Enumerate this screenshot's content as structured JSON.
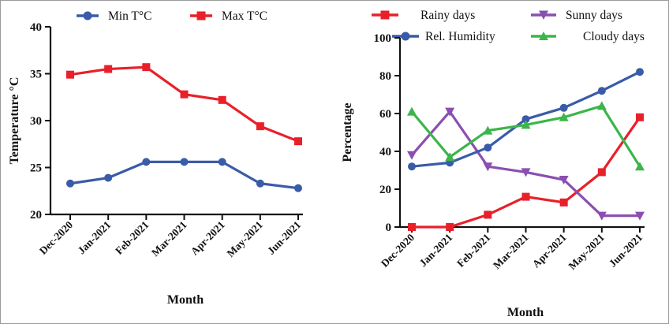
{
  "chart_data": [
    {
      "type": "line",
      "categories": [
        "Dec-2020",
        "Jan-2021",
        "Feb-2021",
        "Mar-2021",
        "Apr-2021",
        "May-2021",
        "Jun-2021"
      ],
      "xlabel": "Month",
      "ylabel": "Temperature °C",
      "ylim": [
        20,
        40
      ],
      "yticks": [
        20,
        25,
        30,
        35,
        40
      ],
      "grid": false,
      "legend_position": "top",
      "series": [
        {
          "name": "Min T°C",
          "color": "#3a5ba8",
          "marker": "circle",
          "values": [
            23.3,
            23.9,
            25.6,
            25.6,
            25.6,
            23.3,
            22.8
          ]
        },
        {
          "name": "Max T°C",
          "color": "#e8202a",
          "marker": "square",
          "values": [
            34.9,
            35.5,
            35.7,
            32.8,
            32.2,
            29.4,
            27.8
          ]
        }
      ]
    },
    {
      "type": "line",
      "categories": [
        "Dec-2020",
        "Jan-2021",
        "Feb-2021",
        "Mar-2021",
        "Apr-2021",
        "May-2021",
        "Jun-2021"
      ],
      "xlabel": "Month",
      "ylabel": "Percentage",
      "ylim": [
        0,
        100
      ],
      "yticks": [
        0,
        20,
        40,
        60,
        80,
        100
      ],
      "grid": false,
      "legend_position": "top",
      "series": [
        {
          "name": "Rainy days",
          "color": "#e8202a",
          "marker": "square",
          "values": [
            0,
            0,
            6.5,
            16,
            13,
            29,
            58
          ]
        },
        {
          "name": "Sunny days",
          "color": "#8a4fb0",
          "marker": "triangle-down",
          "values": [
            38,
            61,
            32,
            29,
            25,
            6,
            6
          ]
        },
        {
          "name": "Rel. Humidity",
          "color": "#3a5ba8",
          "marker": "circle",
          "values": [
            32,
            34,
            42,
            57,
            63,
            72,
            82
          ]
        },
        {
          "name": "Cloudy days",
          "color": "#3cb54a",
          "marker": "triangle-up",
          "values": [
            61,
            37,
            51,
            54,
            58,
            64,
            32
          ]
        }
      ]
    }
  ]
}
